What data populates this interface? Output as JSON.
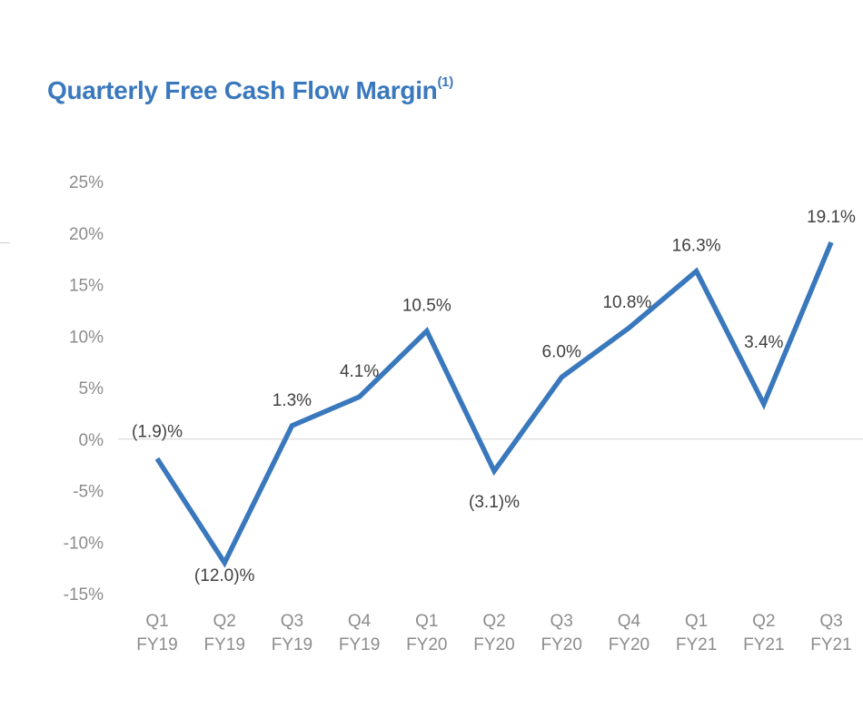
{
  "chart_data": {
    "type": "line",
    "title": "Quarterly Free Cash Flow Margin",
    "title_footnote": "(1)",
    "categories": [
      "Q1 FY19",
      "Q2 FY19",
      "Q3 FY19",
      "Q4 FY19",
      "Q1 FY20",
      "Q2 FY20",
      "Q3 FY20",
      "Q4 FY20",
      "Q1 FY21",
      "Q2 FY21",
      "Q3 FY21"
    ],
    "category_lines": [
      [
        "Q1",
        "FY19"
      ],
      [
        "Q2",
        "FY19"
      ],
      [
        "Q3",
        "FY19"
      ],
      [
        "Q4",
        "FY19"
      ],
      [
        "Q1",
        "FY20"
      ],
      [
        "Q2",
        "FY20"
      ],
      [
        "Q3",
        "FY20"
      ],
      [
        "Q4",
        "FY20"
      ],
      [
        "Q1",
        "FY21"
      ],
      [
        "Q2",
        "FY21"
      ],
      [
        "Q3",
        "FY21"
      ]
    ],
    "series": [
      {
        "name": "Free Cash Flow Margin",
        "values": [
          -1.9,
          -12.0,
          1.3,
          4.1,
          10.5,
          -3.1,
          6.0,
          10.8,
          16.3,
          3.4,
          19.1
        ],
        "labels": [
          "(1.9)%",
          "(12.0)%",
          "1.3%",
          "4.1%",
          "10.5%",
          "(3.1)%",
          "6.0%",
          "10.8%",
          "16.3%",
          "3.4%",
          "19.1%"
        ],
        "color": "#3a78bd"
      }
    ],
    "ylim": [
      -15,
      25
    ],
    "yticks": [
      25,
      20,
      15,
      10,
      5,
      0,
      -5,
      -10,
      -15
    ],
    "ytick_labels": [
      "25%",
      "20%",
      "15%",
      "10%",
      "5%",
      "0%",
      "-5%",
      "-10%",
      "-15%"
    ],
    "xlabel": "",
    "ylabel": "",
    "grid": false,
    "zero_line": true,
    "legend": "none"
  },
  "colors": {
    "title": "#3a78bd",
    "line": "#3a78bd",
    "tick_text": "#8c8c8c",
    "label_text": "#404040",
    "zero_line": "#dcdcdc"
  }
}
